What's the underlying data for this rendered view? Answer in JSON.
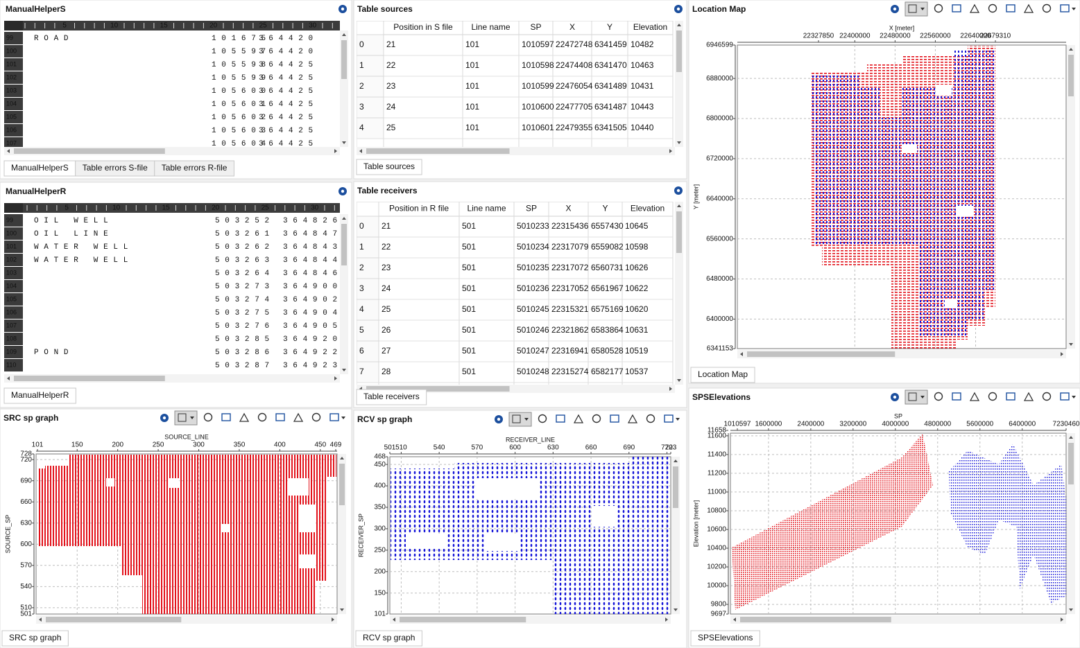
{
  "manual_helper_s": {
    "title": "ManualHelperS",
    "ruler": [
      5,
      10,
      15,
      20,
      25,
      30
    ],
    "rows": [
      [
        99,
        "ROAD",
        101675,
        364420
      ],
      [
        100,
        null,
        105597,
        364420
      ],
      [
        101,
        null,
        105598,
        364425
      ],
      [
        102,
        null,
        105599,
        364425
      ],
      [
        103,
        null,
        105600,
        364425
      ],
      [
        104,
        null,
        105601,
        364425
      ],
      [
        105,
        null,
        105602,
        364425
      ],
      [
        106,
        null,
        105603,
        364425
      ],
      [
        107,
        null,
        105604,
        364425
      ]
    ],
    "tabs": [
      "ManualHelperS",
      "Table errors S-file",
      "Table errors R-file"
    ]
  },
  "manual_helper_r": {
    "title": "ManualHelperR",
    "ruler": [
      5,
      10,
      15,
      20,
      25,
      30
    ],
    "rows": [
      [
        99,
        "OIL WELL",
        503252,
        364826
      ],
      [
        100,
        "OIL LINE",
        503261,
        364847
      ],
      [
        101,
        "WATER WELL",
        503262,
        364843
      ],
      [
        102,
        "WATER WELL",
        503263,
        364844
      ],
      [
        103,
        null,
        503264,
        364846
      ],
      [
        104,
        null,
        503273,
        364900
      ],
      [
        105,
        null,
        503274,
        364902
      ],
      [
        106,
        null,
        503275,
        364904
      ],
      [
        107,
        null,
        503276,
        364905
      ],
      [
        108,
        null,
        503285,
        364920
      ],
      [
        109,
        "POND",
        503286,
        364922
      ],
      [
        110,
        null,
        503287,
        364923
      ]
    ],
    "tabs": [
      "ManualHelperR"
    ]
  },
  "table_sources": {
    "title": "Table sources",
    "columns": [
      "Position in S file",
      "Line name",
      "SP",
      "X",
      "Y",
      "Elevation"
    ],
    "rows": [
      [
        0,
        21,
        101,
        1010597,
        22472748,
        6341459,
        10482
      ],
      [
        1,
        22,
        101,
        1010598,
        22474408,
        6341470,
        10463
      ],
      [
        2,
        23,
        101,
        1010599,
        22476054,
        6341489,
        10431
      ],
      [
        3,
        24,
        101,
        1010600,
        22477705,
        6341487,
        10443
      ],
      [
        4,
        25,
        101,
        1010601,
        22479355,
        6341505,
        10440
      ]
    ],
    "tabs": [
      "Table sources"
    ]
  },
  "table_receivers": {
    "title": "Table receivers",
    "columns": [
      "Position in R file",
      "Line name",
      "SP",
      "X",
      "Y",
      "Elevation"
    ],
    "rows": [
      [
        0,
        21,
        501,
        5010233,
        22315436,
        6557430,
        10645
      ],
      [
        1,
        22,
        501,
        5010234,
        22317079,
        6559082,
        10598
      ],
      [
        2,
        23,
        501,
        5010235,
        22317072,
        6560731,
        10626
      ],
      [
        3,
        24,
        501,
        5010236,
        22317052,
        6561967,
        10622
      ],
      [
        4,
        25,
        501,
        5010245,
        22315321,
        6575169,
        10620
      ],
      [
        5,
        26,
        501,
        5010246,
        22321862,
        6583864,
        10631
      ],
      [
        6,
        27,
        501,
        5010247,
        22316941,
        6580528,
        10519
      ],
      [
        7,
        28,
        501,
        5010248,
        22315274,
        6582177,
        10537
      ]
    ],
    "tabs": [
      "Table receivers"
    ]
  },
  "chart_data": [
    {
      "type": "scatter",
      "title": "Location Map",
      "x_label": "X [meter]",
      "y_label": "Y [meter]",
      "xlim": [
        22327850,
        22679310
      ],
      "xticks": [
        22400000,
        22480000,
        22560000,
        22640000
      ],
      "ylim": [
        6341153,
        6946599
      ],
      "yticks": [
        6400000,
        6480000,
        6560000,
        6640000,
        6720000,
        6800000,
        6880000
      ],
      "grid": true,
      "colors": [
        "#e3121b",
        "#1414d8"
      ],
      "tab": "Location Map"
    },
    {
      "type": "scatter",
      "title": "SRC sp graph",
      "x_label": "SOURCE_LINE",
      "y_label": "SOURCE_SP",
      "xlim": [
        101,
        469
      ],
      "xticks": [
        150,
        200,
        250,
        300,
        350,
        400,
        450
      ],
      "ylim": [
        501,
        728
      ],
      "yticks": [
        510,
        540,
        570,
        600,
        630,
        660,
        690,
        720
      ],
      "grid": true,
      "colors": [
        "#e3121b"
      ],
      "tab": "SRC sp graph"
    },
    {
      "type": "scatter",
      "title": "RCV sp graph",
      "x_label": "RECEIVER_LINE",
      "y_label": "RECEIVER_SP",
      "xlim": [
        501,
        723
      ],
      "xticks": [
        510,
        540,
        570,
        600,
        630,
        660,
        690,
        720
      ],
      "ylim": [
        101,
        468
      ],
      "yticks": [
        150,
        200,
        250,
        300,
        350,
        400,
        450
      ],
      "grid": true,
      "colors": [
        "#1414d8"
      ],
      "tab": "RCV sp graph"
    },
    {
      "type": "scatter",
      "title": "SPSElevations",
      "x_label": "SP",
      "y_label": "Elevation [meter]",
      "xlim": [
        1010597,
        7230460
      ],
      "xticks": [
        1600000,
        2400000,
        3200000,
        4000000,
        4800000,
        5600000,
        6400000
      ],
      "ylim": [
        9697,
        11658
      ],
      "yticks": [
        9800,
        10000,
        10200,
        10400,
        10600,
        10800,
        11000,
        11200,
        11400,
        11600
      ],
      "grid": true,
      "colors": [
        "#e3121b",
        "#1414d8"
      ],
      "tab": "SPSElevations"
    }
  ]
}
